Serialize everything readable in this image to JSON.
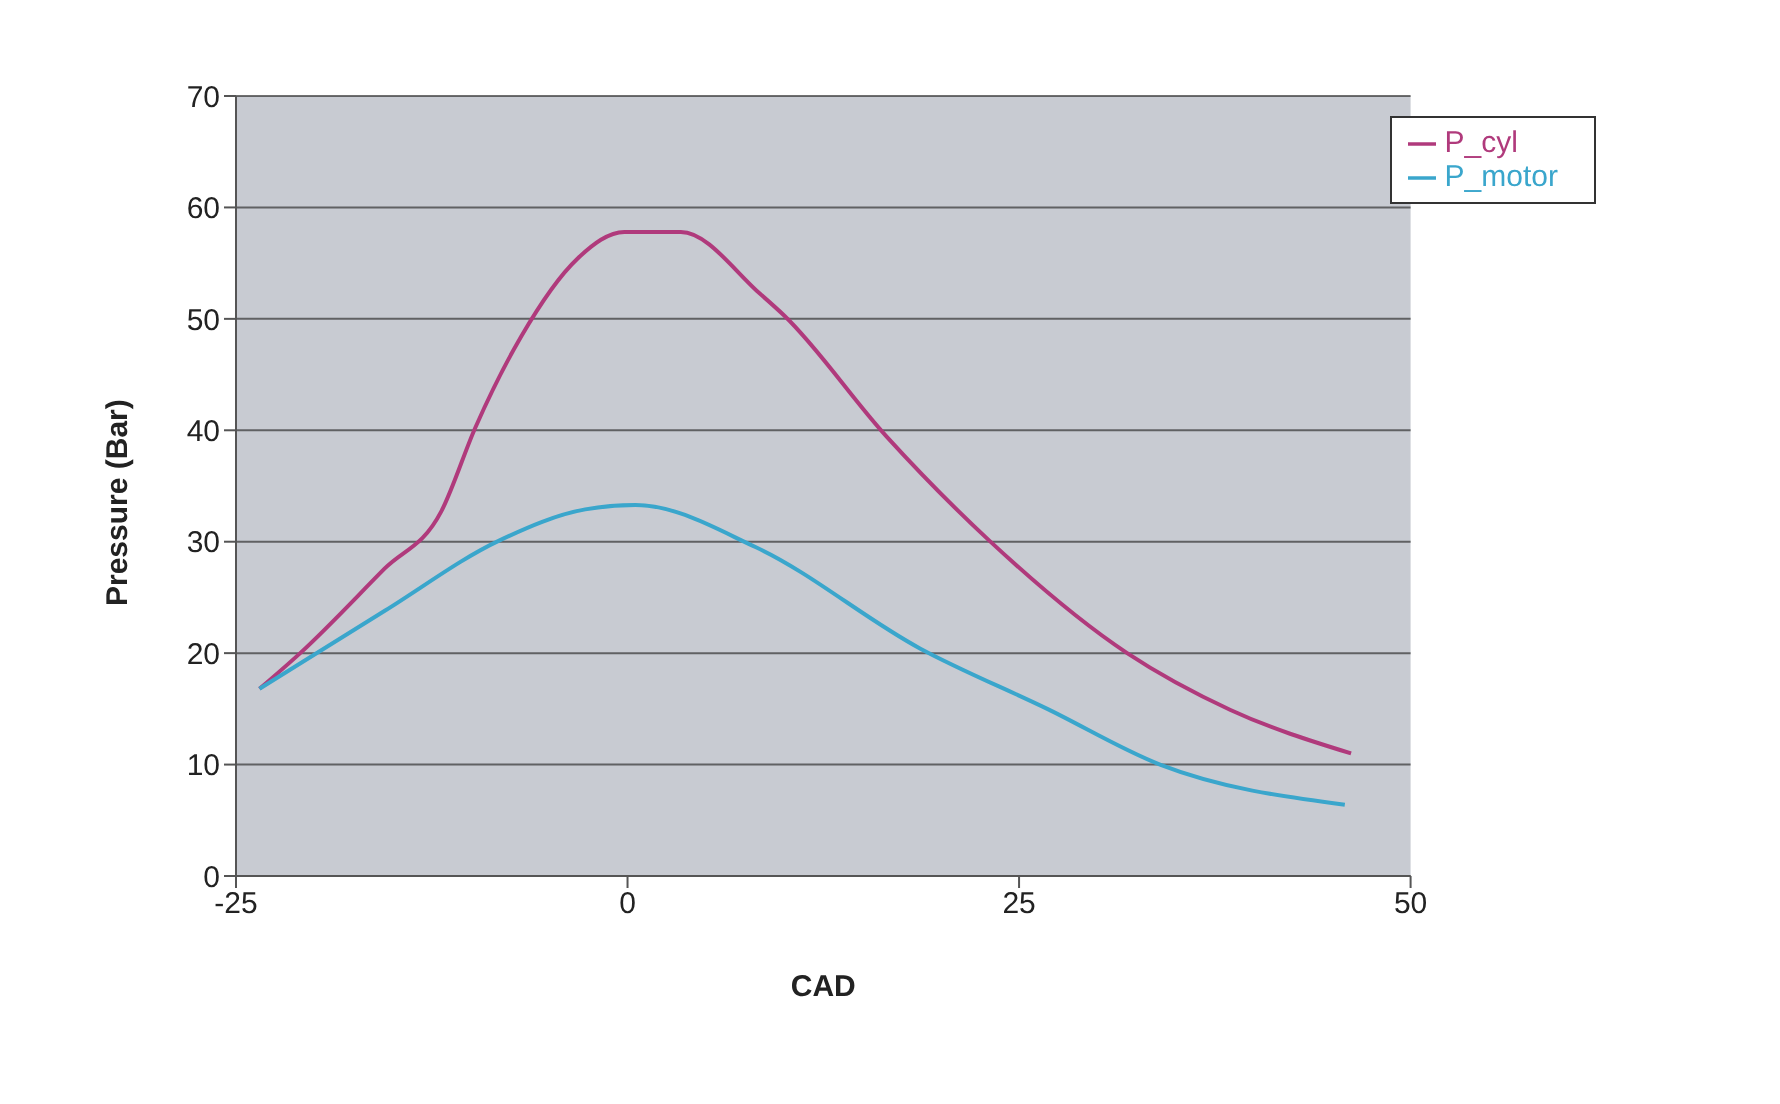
{
  "chart_data": {
    "type": "line",
    "xlabel": "CAD",
    "ylabel": "Pressure (Bar)",
    "xlim": [
      -25,
      50
    ],
    "xticks": [
      -25,
      0,
      25,
      50
    ],
    "ylim": [
      0,
      70
    ],
    "yticks": [
      0,
      10,
      20,
      30,
      40,
      50,
      60,
      70
    ],
    "grid": "y",
    "legend": "top right",
    "marker": "none",
    "line_style": "solid",
    "series": [
      {
        "name": "P_cyl",
        "color": "#b03a7c",
        "x": [
          -23.5,
          -20.9,
          -15.5,
          -11.9,
          -9.7,
          -6.8,
          -3.2,
          -0.2,
          3.4,
          8.5,
          10,
          16.5,
          23.1,
          31.9,
          38.5,
          46.2
        ],
        "values": [
          16.8,
          20,
          27.6,
          32.7,
          40.3,
          48.4,
          55.4,
          57.8,
          57.8,
          52.2,
          50.3,
          39.5,
          30.1,
          20,
          14.9,
          11
        ]
      },
      {
        "name": "P_motor",
        "color": "#3aa6cc",
        "x": [
          -23.5,
          -15.5,
          -8.2,
          -2.7,
          0.5,
          8.2,
          18.7,
          26.8,
          34,
          45.8
        ],
        "values": [
          16.8,
          23.8,
          30.1,
          32.9,
          33.3,
          29.5,
          20.4,
          15,
          10,
          6.4
        ]
      }
    ]
  }
}
